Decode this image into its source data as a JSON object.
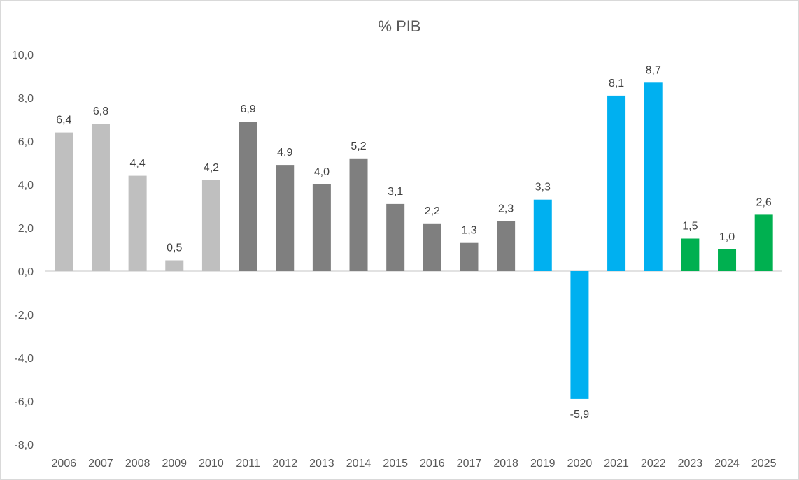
{
  "chart_data": {
    "type": "bar",
    "title": "% PIB",
    "xlabel": "",
    "ylabel": "",
    "ylim": [
      -8,
      10
    ],
    "ytick_labels": [
      "10,0",
      "8,0",
      "6,0",
      "4,0",
      "2,0",
      "0,0",
      "-2,0",
      "-4,0",
      "-6,0",
      "-8,0"
    ],
    "yticks": [
      10,
      8,
      6,
      4,
      2,
      0,
      -2,
      -4,
      -6,
      -8
    ],
    "categories": [
      "2006",
      "2007",
      "2008",
      "2009",
      "2010",
      "2011",
      "2012",
      "2013",
      "2014",
      "2015",
      "2016",
      "2017",
      "2018",
      "2019",
      "2020",
      "2021",
      "2022",
      "2023",
      "2024",
      "2025"
    ],
    "values": [
      6.4,
      6.8,
      4.4,
      0.5,
      4.2,
      6.9,
      4.9,
      4.0,
      5.2,
      3.1,
      2.2,
      1.3,
      2.3,
      3.3,
      -5.9,
      8.1,
      8.7,
      1.5,
      1.0,
      2.6
    ],
    "value_labels": [
      "6,4",
      "6,8",
      "4,4",
      "0,5",
      "4,2",
      "6,9",
      "4,9",
      "4,0",
      "5,2",
      "3,1",
      "2,2",
      "1,3",
      "2,3",
      "3,3",
      "-5,9",
      "8,1",
      "8,7",
      "1,5",
      "1,0",
      "2,6"
    ],
    "bar_colors": [
      "#bfbfbf",
      "#bfbfbf",
      "#bfbfbf",
      "#bfbfbf",
      "#bfbfbf",
      "#7f7f7f",
      "#7f7f7f",
      "#7f7f7f",
      "#7f7f7f",
      "#7f7f7f",
      "#7f7f7f",
      "#7f7f7f",
      "#7f7f7f",
      "#00b0f0",
      "#00b0f0",
      "#00b0f0",
      "#00b0f0",
      "#00b050",
      "#00b050",
      "#00b050"
    ],
    "grid": false,
    "legend": "none"
  },
  "colors": {
    "axis_line": "#d9d9d9",
    "frame_border": "#d9d9d9"
  }
}
